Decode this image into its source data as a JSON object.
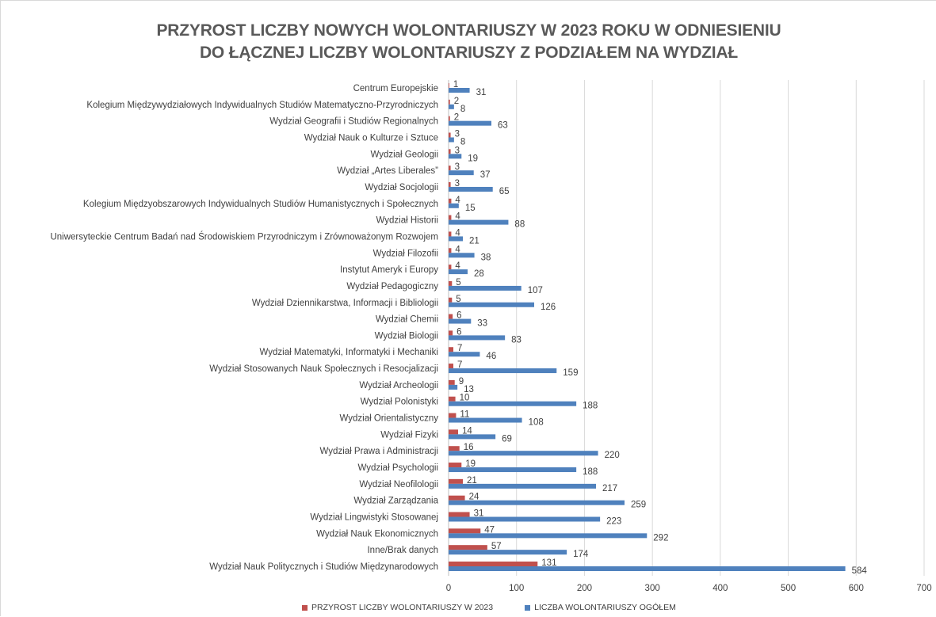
{
  "chart_data": {
    "type": "bar",
    "orientation": "horizontal",
    "title_lines": [
      "PRZYROST LICZBY NOWYCH WOLONTARIUSZY W 2023 ROKU W ODNIESIENIU",
      "DO ŁĄCZNEJ LICZBY WOLONTARIUSZY Z PODZIAŁEM NA WYDZIAŁ"
    ],
    "xlabel": "",
    "ylabel": "",
    "xlim": [
      0,
      700
    ],
    "xticks": [
      0,
      100,
      200,
      300,
      400,
      500,
      600,
      700
    ],
    "grid": true,
    "legend_position": "bottom",
    "categories": [
      "Centrum Europejskie",
      "Kolegium Międzywydziałowych Indywidualnych Studiów Matematyczno-Przyrodniczych",
      "Wydział Geografii i Studiów Regionalnych",
      "Wydział Nauk o Kulturze i Sztuce",
      "Wydział Geologii",
      "Wydział „Artes Liberales”",
      "Wydział Socjologii",
      "Kolegium Międzyobszarowych Indywidualnych Studiów Humanistycznych i Społecznych",
      "Wydział Historii",
      "Uniwersyteckie Centrum Badań nad Środowiskiem Przyrodniczym i Zrównoważonym Rozwojem",
      "Wydział Filozofii",
      "Instytut Ameryk i Europy",
      "Wydział Pedagogiczny",
      "Wydział Dziennikarstwa, Informacji i Bibliologii",
      "Wydział Chemii",
      "Wydział Biologii",
      "Wydział Matematyki, Informatyki i Mechaniki",
      "Wydział Stosowanych Nauk Społecznych i Resocjalizacji",
      "Wydział Archeologii",
      "Wydział Polonistyki",
      "Wydział Orientalistyczny",
      "Wydział Fizyki",
      "Wydział Prawa i Administracji",
      "Wydział Psychologii",
      "Wydział Neofilologii",
      "Wydział Zarządzania",
      "Wydział Lingwistyki Stosowanej",
      "Wydział Nauk Ekonomicznych",
      "Inne/Brak danych",
      "Wydział Nauk Politycznych i Studiów Międzynarodowych"
    ],
    "series": [
      {
        "name": "PRZYROST LICZBY WOLONTARIUSZY W 2023",
        "color": "#c0504d",
        "values": [
          1,
          2,
          2,
          3,
          3,
          3,
          3,
          4,
          4,
          4,
          4,
          4,
          5,
          5,
          6,
          6,
          7,
          7,
          9,
          10,
          11,
          14,
          16,
          19,
          21,
          24,
          31,
          47,
          57,
          131
        ]
      },
      {
        "name": "LICZBA WOLONTARIUSZY OGÓŁEM",
        "color": "#4f81bd",
        "values": [
          31,
          8,
          63,
          8,
          19,
          37,
          65,
          15,
          88,
          21,
          38,
          28,
          107,
          126,
          33,
          83,
          46,
          159,
          13,
          188,
          108,
          69,
          220,
          188,
          217,
          259,
          223,
          292,
          174,
          584
        ]
      }
    ]
  }
}
